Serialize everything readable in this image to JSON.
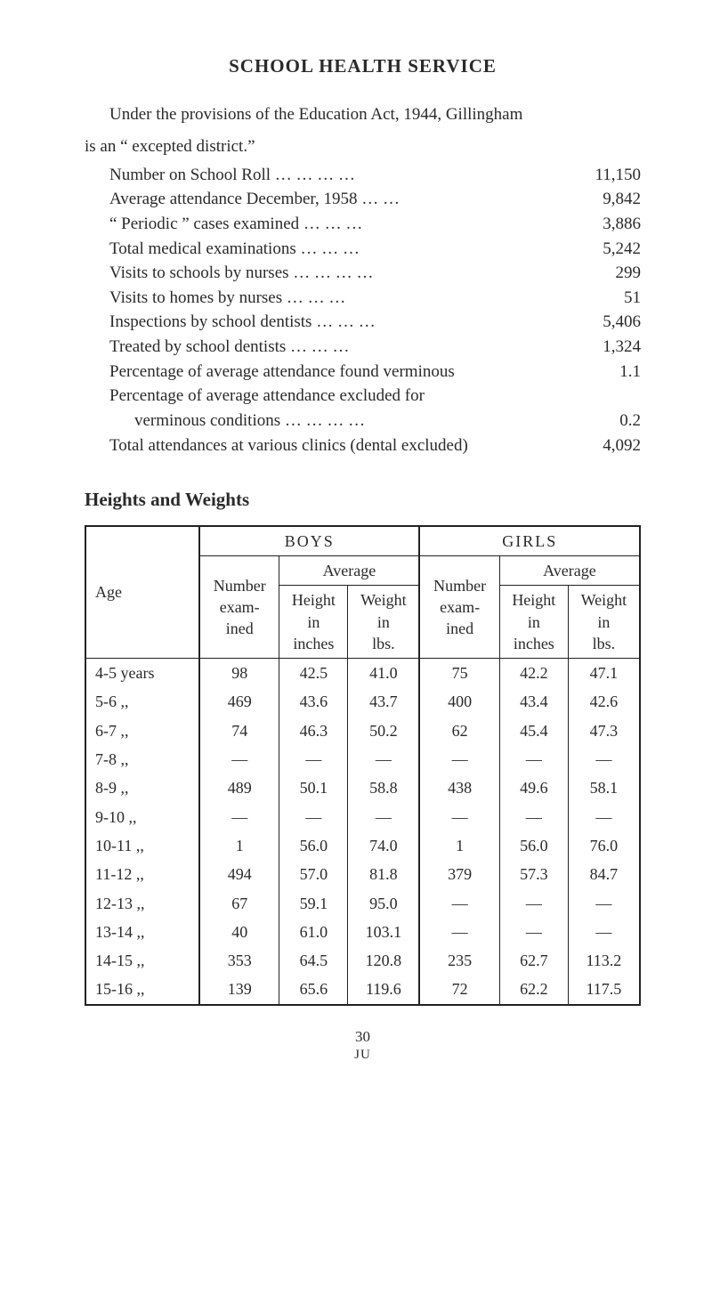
{
  "title": "SCHOOL HEALTH SERVICE",
  "intro_line1": "Under the provisions of the Education Act, 1944, Gillingham",
  "intro_line2": "is an “ excepted district.”",
  "stats": [
    {
      "label": "Number on School Roll …   …   …   …",
      "value": "11,150"
    },
    {
      "label": "Average attendance December, 1958        …   …",
      "value": "9,842"
    },
    {
      "label": "“ Periodic ” cases examined            …   …   …",
      "value": "3,886"
    },
    {
      "label": "Total medical examinations           …   …   …",
      "value": "5,242"
    },
    {
      "label": "Visits to schools by nurses  …     …   …   …",
      "value": "299"
    },
    {
      "label": "Visits to homes by nurses               …   …   …",
      "value": "51"
    },
    {
      "label": "Inspections by school dentists        …   …   …",
      "value": "5,406"
    },
    {
      "label": "Treated by school dentists               …   …   …",
      "value": "1,324"
    },
    {
      "label": "Percentage of average attendance found verminous",
      "value": "1.1"
    },
    {
      "label": "Percentage of average attendance excluded for",
      "value": ""
    },
    {
      "label_sub": "verminous conditions        …    …   …   …",
      "value": "0.2"
    },
    {
      "label": "Total attendances at various clinics (dental excluded)",
      "value": "4,092"
    }
  ],
  "hw_title": "Heights and Weights",
  "table": {
    "headers": {
      "age": "Age",
      "boys": "BOYS",
      "girls": "GIRLS",
      "average": "Average",
      "number": "Number exam- ined",
      "height": "Height in inches",
      "weight": "Weight in lbs."
    },
    "rows": [
      {
        "age": "4-5 years",
        "b_n": "98",
        "b_h": "42.5",
        "b_w": "41.0",
        "g_n": "75",
        "g_h": "42.2",
        "g_w": "47.1"
      },
      {
        "age": "5-6   ,,",
        "b_n": "469",
        "b_h": "43.6",
        "b_w": "43.7",
        "g_n": "400",
        "g_h": "43.4",
        "g_w": "42.6"
      },
      {
        "age": "6-7   ,,",
        "b_n": "74",
        "b_h": "46.3",
        "b_w": "50.2",
        "g_n": "62",
        "g_h": "45.4",
        "g_w": "47.3"
      },
      {
        "age": "7-8   ,,",
        "b_n": "—",
        "b_h": "—",
        "b_w": "—",
        "g_n": "—",
        "g_h": "—",
        "g_w": "—"
      },
      {
        "age": "8-9   ,,",
        "b_n": "489",
        "b_h": "50.1",
        "b_w": "58.8",
        "g_n": "438",
        "g_h": "49.6",
        "g_w": "58.1"
      },
      {
        "age": "9-10  ,,",
        "b_n": "—",
        "b_h": "—",
        "b_w": "—",
        "g_n": "—",
        "g_h": "—",
        "g_w": "—"
      },
      {
        "age": "10-11 ,,",
        "b_n": "1",
        "b_h": "56.0",
        "b_w": "74.0",
        "g_n": "1",
        "g_h": "56.0",
        "g_w": "76.0"
      },
      {
        "age": "11-12 ,,",
        "b_n": "494",
        "b_h": "57.0",
        "b_w": "81.8",
        "g_n": "379",
        "g_h": "57.3",
        "g_w": "84.7"
      },
      {
        "age": "12-13 ,,",
        "b_n": "67",
        "b_h": "59.1",
        "b_w": "95.0",
        "g_n": "—",
        "g_h": "—",
        "g_w": "—"
      },
      {
        "age": "13-14 ,,",
        "b_n": "40",
        "b_h": "61.0",
        "b_w": "103.1",
        "g_n": "—",
        "g_h": "—",
        "g_w": "—"
      },
      {
        "age": "14-15 ,,",
        "b_n": "353",
        "b_h": "64.5",
        "b_w": "120.8",
        "g_n": "235",
        "g_h": "62.7",
        "g_w": "113.2"
      },
      {
        "age": "15-16 ,,",
        "b_n": "139",
        "b_h": "65.6",
        "b_w": "119.6",
        "g_n": "72",
        "g_h": "62.2",
        "g_w": "117.5"
      }
    ]
  },
  "page_number": "30",
  "footer_mark": "JU"
}
